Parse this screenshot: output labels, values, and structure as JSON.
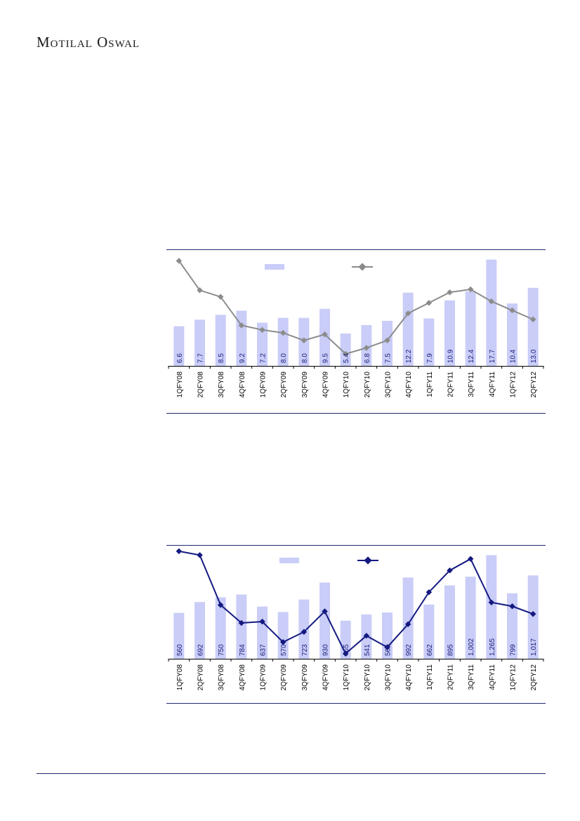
{
  "header": {
    "brand": "Motilal Oswal"
  },
  "chart_data": [
    {
      "type": "bar",
      "categories": [
        "1QFY08",
        "2QFY08",
        "3QFY08",
        "4QFY08",
        "1QFY09",
        "2QFY09",
        "3QFY09",
        "4QFY09",
        "1QFY10",
        "2QFY10",
        "3QFY10",
        "4QFY10",
        "1QFY11",
        "2QFY11",
        "3QFY11",
        "4QFY11",
        "1QFY12",
        "2QFY12"
      ],
      "values": [
        6.6,
        7.7,
        8.5,
        9.2,
        7.2,
        8.0,
        8.0,
        9.5,
        5.4,
        6.8,
        7.5,
        12.2,
        7.9,
        10.9,
        12.4,
        17.7,
        10.4,
        13.0
      ],
      "value_labels": [
        "6.6",
        "7.7",
        "8.5",
        "9.2",
        "7.2",
        "8.0",
        "8.0",
        "9.5",
        "5.4",
        "6.8",
        "7.5",
        "12.2",
        "7.9",
        "10.9",
        "12.4",
        "17.7",
        "10.4",
        "13.0"
      ],
      "line_values": [
        35.0,
        25.2,
        23.0,
        13.5,
        12.0,
        11.0,
        8.5,
        10.5,
        4.0,
        6.0,
        8.5,
        17.5,
        21.0,
        24.5,
        25.5,
        21.5,
        18.5,
        15.5
      ],
      "bar_ylim": [
        0,
        20
      ],
      "line_ylim": [
        0,
        40
      ],
      "bar_color": "#c9cdf7",
      "line_color": "#8c8c8c",
      "legend": "top"
    },
    {
      "type": "bar",
      "categories": [
        "1QFY08",
        "2QFY08",
        "3QFY08",
        "4QFY08",
        "1QFY09",
        "2QFY09",
        "3QFY09",
        "4QFY09",
        "1QFY10",
        "2QFY10",
        "3QFY10",
        "4QFY10",
        "1QFY11",
        "2QFY11",
        "3QFY11",
        "4QFY11",
        "1QFY12",
        "2QFY12"
      ],
      "values": [
        560,
        692,
        750,
        784,
        637,
        570,
        723,
        930,
        465,
        541,
        565,
        992,
        662,
        895,
        1002,
        1265,
        799,
        1017
      ],
      "value_labels": [
        "560",
        "692",
        "750",
        "784",
        "637",
        "570",
        "723",
        "930",
        "465",
        "541",
        "565",
        "992",
        "662",
        "895",
        "1,002",
        "1,265",
        "799",
        "1,017"
      ],
      "line_values": [
        42.0,
        40.5,
        21.0,
        14.0,
        14.5,
        6.5,
        10.5,
        18.5,
        2.0,
        9.0,
        4.5,
        13.5,
        26.0,
        34.5,
        39.0,
        22.0,
        20.5,
        17.5
      ],
      "bar_ylim": [
        0,
        1500
      ],
      "line_ylim": [
        0,
        48
      ],
      "bar_color": "#c9cdf7",
      "line_color": "#141a80",
      "legend": "top"
    }
  ]
}
